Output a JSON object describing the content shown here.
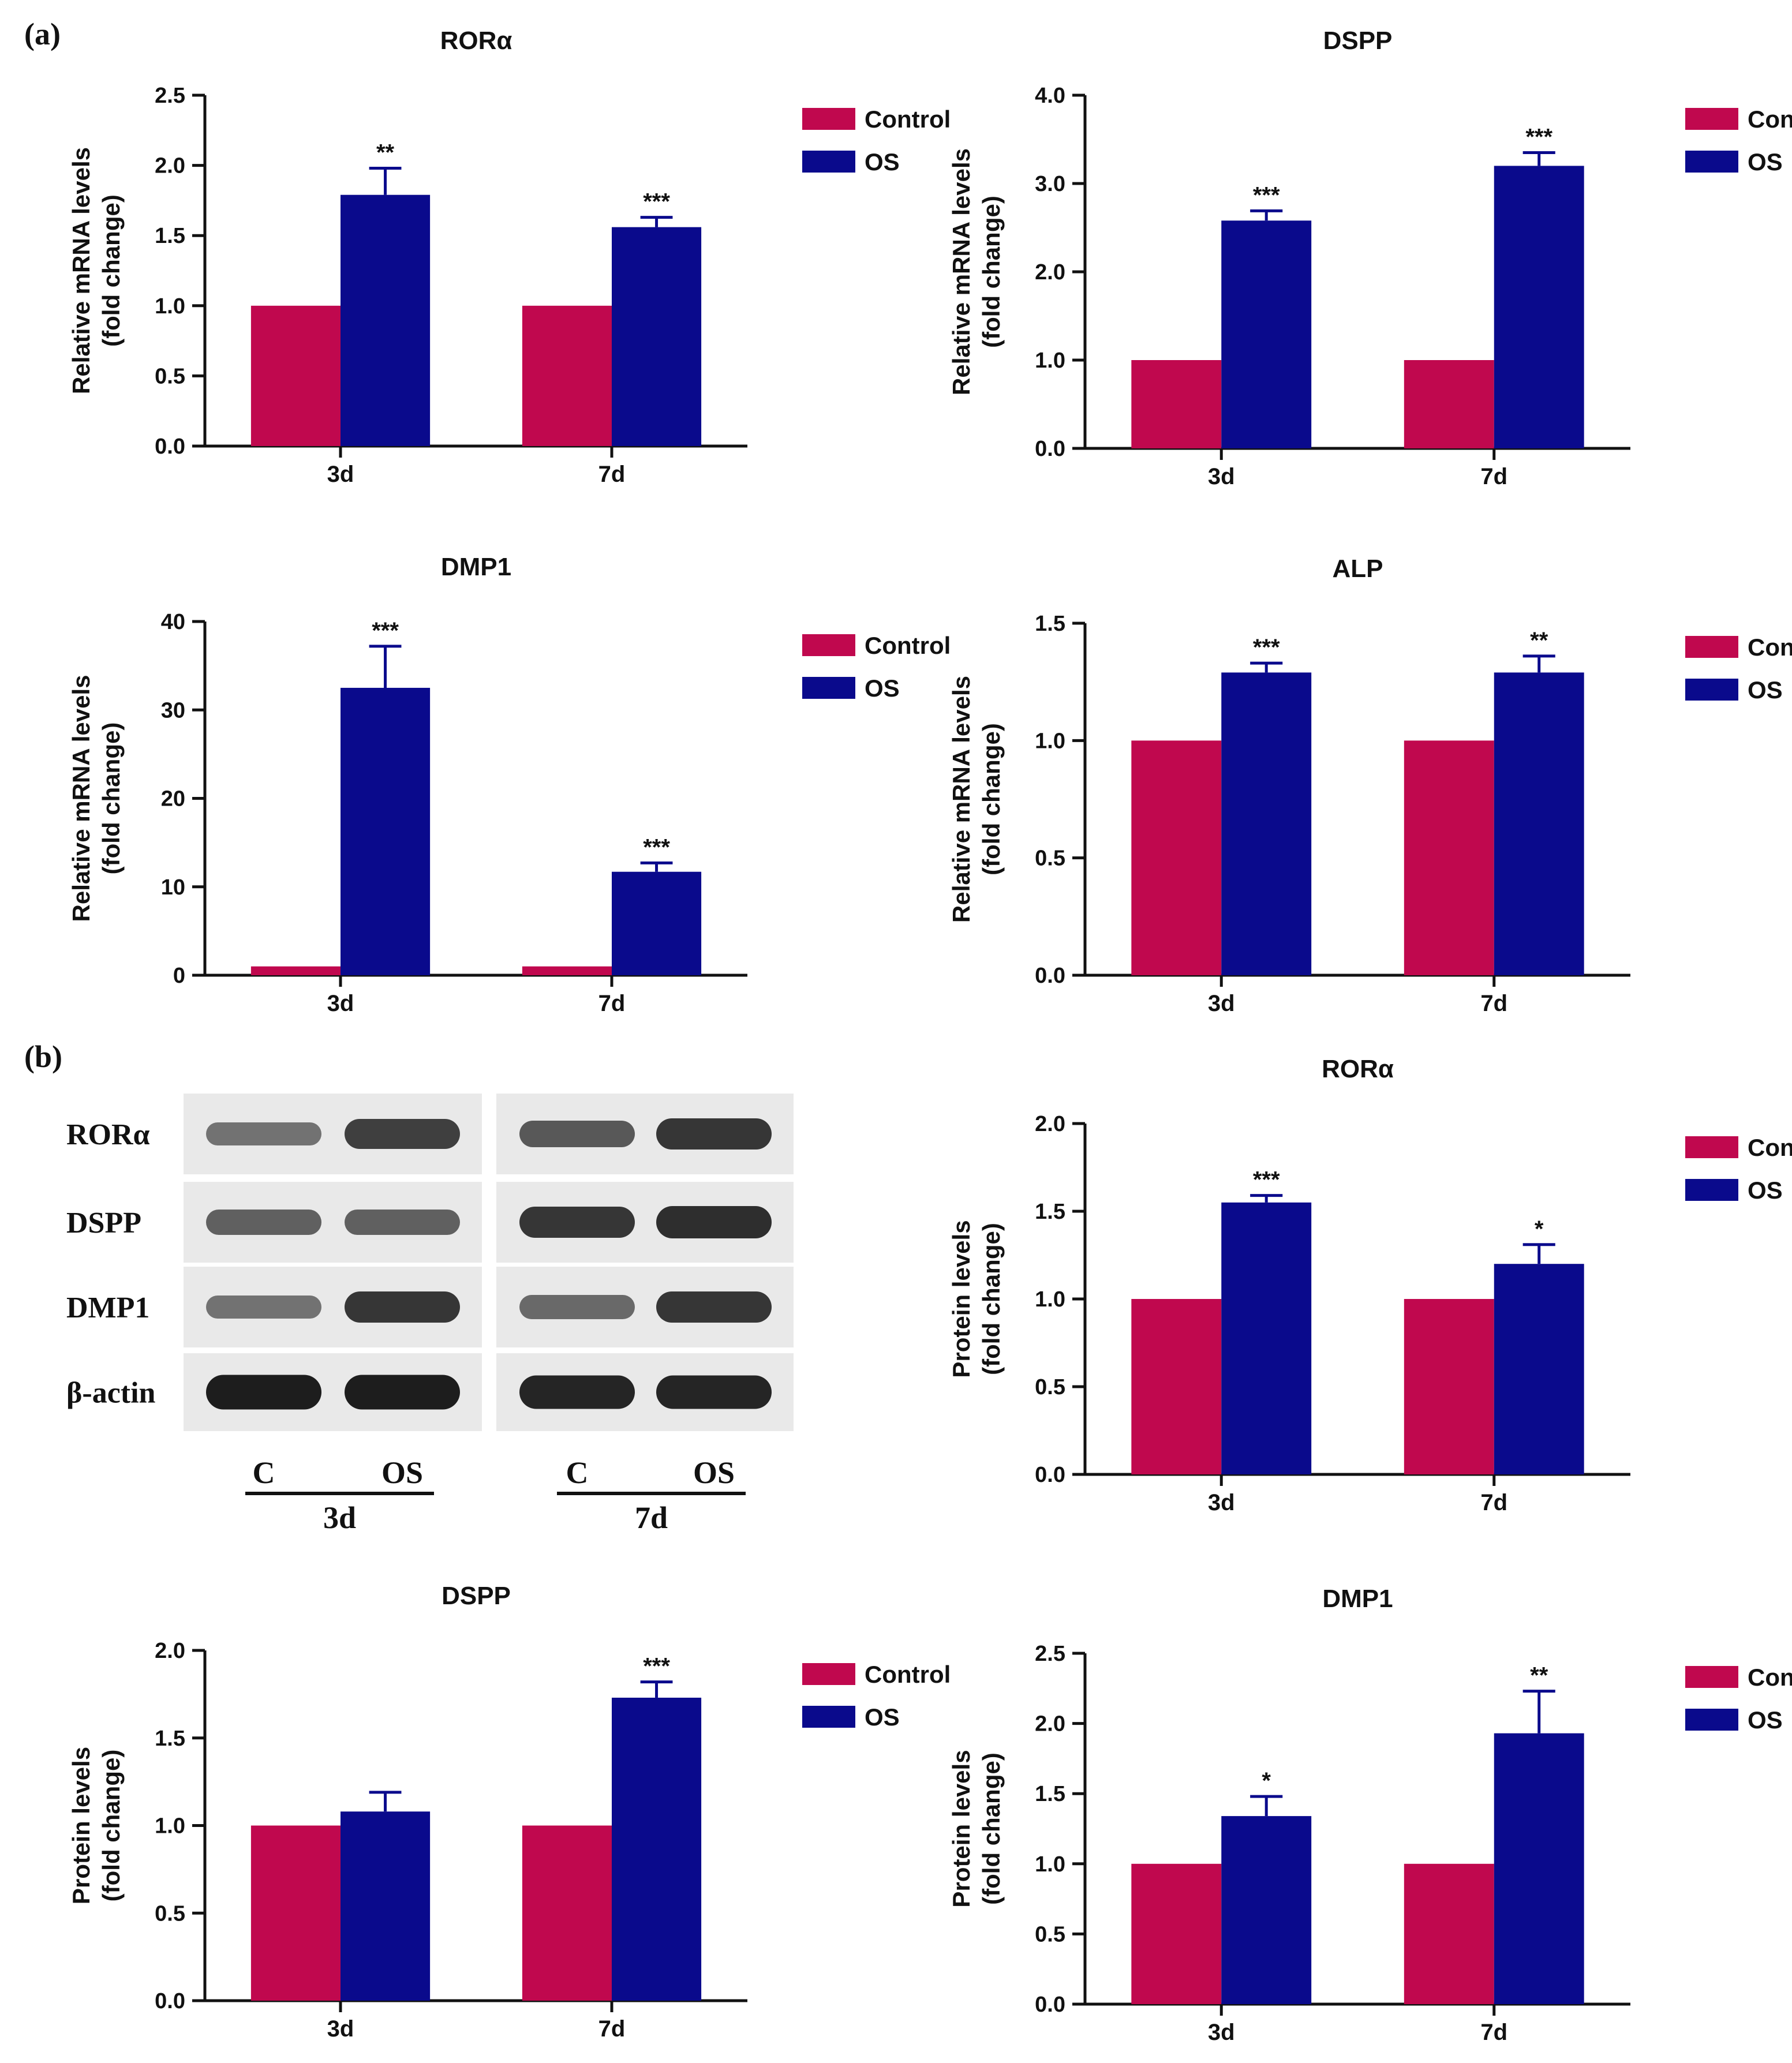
{
  "panels": {
    "a": "(a)",
    "b": "(b)"
  },
  "colors": {
    "control": "#C0084E",
    "os": "#0A0A8C",
    "axis": "#111111"
  },
  "chart_data": [
    {
      "type": "bar",
      "id": "a-rora",
      "title": "RORα",
      "ylabel": [
        "Relative mRNA levels",
        "(fold change)"
      ],
      "categories": [
        "3d",
        "7d"
      ],
      "ylim": [
        0,
        2.5
      ],
      "yticks": [
        "0.0",
        "0.5",
        "1.0",
        "1.5",
        "2.0",
        "2.5"
      ],
      "series": [
        {
          "name": "Control",
          "values": [
            1.0,
            1.0
          ],
          "err": [
            0,
            0
          ]
        },
        {
          "name": "OS",
          "values": [
            1.79,
            1.56
          ],
          "err": [
            0.19,
            0.07
          ]
        }
      ],
      "sig": [
        "**",
        "***"
      ]
    },
    {
      "type": "bar",
      "id": "a-dspp",
      "title": "DSPP",
      "ylabel": [
        "Relative mRNA levels",
        "(fold change)"
      ],
      "categories": [
        "3d",
        "7d"
      ],
      "ylim": [
        0,
        4.0
      ],
      "yticks": [
        "0.0",
        "1.0",
        "2.0",
        "3.0",
        "4.0"
      ],
      "series": [
        {
          "name": "Control",
          "values": [
            1.0,
            1.0
          ],
          "err": [
            0,
            0
          ]
        },
        {
          "name": "OS",
          "values": [
            2.58,
            3.2
          ],
          "err": [
            0.11,
            0.15
          ]
        }
      ],
      "sig": [
        "***",
        "***"
      ]
    },
    {
      "type": "bar",
      "id": "a-dmp1",
      "title": "DMP1",
      "ylabel": [
        "Relative mRNA levels",
        "(fold change)"
      ],
      "categories": [
        "3d",
        "7d"
      ],
      "ylim": [
        0,
        40
      ],
      "yticks": [
        "0",
        "10",
        "20",
        "30",
        "40"
      ],
      "series": [
        {
          "name": "Control",
          "values": [
            1.0,
            1.0
          ],
          "err": [
            0,
            0
          ]
        },
        {
          "name": "OS",
          "values": [
            32.5,
            11.7
          ],
          "err": [
            4.7,
            1.0
          ]
        }
      ],
      "sig": [
        "***",
        "***"
      ]
    },
    {
      "type": "bar",
      "id": "a-alp",
      "title": "ALP",
      "ylabel": [
        "Relative mRNA levels",
        "(fold change)"
      ],
      "categories": [
        "3d",
        "7d"
      ],
      "ylim": [
        0,
        1.5
      ],
      "yticks": [
        "0.0",
        "0.5",
        "1.0",
        "1.5"
      ],
      "series": [
        {
          "name": "Control",
          "values": [
            1.0,
            1.0
          ],
          "err": [
            0,
            0
          ]
        },
        {
          "name": "OS",
          "values": [
            1.29,
            1.29
          ],
          "err": [
            0.04,
            0.07
          ]
        }
      ],
      "sig": [
        "***",
        "**"
      ]
    },
    {
      "type": "bar",
      "id": "b-rora",
      "title": "RORα",
      "ylabel": [
        "Protein levels",
        "(fold change)"
      ],
      "categories": [
        "3d",
        "7d"
      ],
      "ylim": [
        0,
        2.0
      ],
      "yticks": [
        "0.0",
        "0.5",
        "1.0",
        "1.5",
        "2.0"
      ],
      "series": [
        {
          "name": "Control",
          "values": [
            1.0,
            1.0
          ],
          "err": [
            0,
            0
          ]
        },
        {
          "name": "OS",
          "values": [
            1.55,
            1.2
          ],
          "err": [
            0.04,
            0.11
          ]
        }
      ],
      "sig": [
        "***",
        "*"
      ]
    },
    {
      "type": "bar",
      "id": "b-dspp",
      "title": "DSPP",
      "ylabel": [
        "Protein levels",
        "(fold change)"
      ],
      "categories": [
        "3d",
        "7d"
      ],
      "ylim": [
        0,
        2.0
      ],
      "yticks": [
        "0.0",
        "0.5",
        "1.0",
        "1.5",
        "2.0"
      ],
      "series": [
        {
          "name": "Control",
          "values": [
            1.0,
            1.0
          ],
          "err": [
            0,
            0
          ]
        },
        {
          "name": "OS",
          "values": [
            1.08,
            1.73
          ],
          "err": [
            0.11,
            0.09
          ]
        }
      ],
      "sig": [
        "",
        "***"
      ]
    },
    {
      "type": "bar",
      "id": "b-dmp1",
      "title": "DMP1",
      "ylabel": [
        "Protein levels",
        "(fold change)"
      ],
      "categories": [
        "3d",
        "7d"
      ],
      "ylim": [
        0,
        2.5
      ],
      "yticks": [
        "0.0",
        "0.5",
        "1.0",
        "1.5",
        "2.0",
        "2.5"
      ],
      "series": [
        {
          "name": "Control",
          "values": [
            1.0,
            1.0
          ],
          "err": [
            0,
            0
          ]
        },
        {
          "name": "OS",
          "values": [
            1.34,
            1.93
          ],
          "err": [
            0.14,
            0.3
          ]
        }
      ],
      "sig": [
        "*",
        "**"
      ]
    }
  ],
  "blot": {
    "rows": [
      "RORα",
      "DSPP",
      "DMP1",
      "β-actin"
    ],
    "lanes": [
      "C",
      "OS",
      "C",
      "OS"
    ],
    "groups": [
      "3d",
      "7d"
    ],
    "intensity": [
      [
        0.45,
        0.75,
        0.6,
        0.8
      ],
      [
        0.55,
        0.55,
        0.8,
        0.85
      ],
      [
        0.45,
        0.8,
        0.5,
        0.8
      ],
      [
        0.95,
        0.95,
        0.9,
        0.9
      ]
    ]
  }
}
